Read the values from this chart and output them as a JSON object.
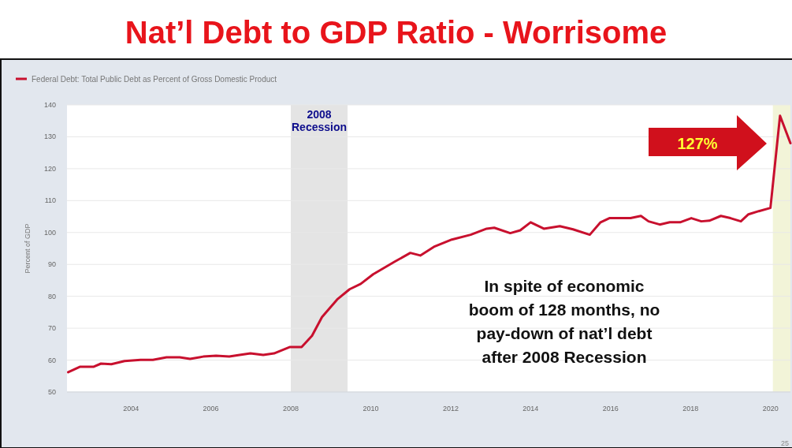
{
  "chart_data": {
    "type": "line",
    "title": "Nat’l Debt to GDP Ratio - Worrisome",
    "ylabel": "Percent of GDP",
    "x": [
      2002.43,
      2002.72,
      2003.06,
      2003.25,
      2003.51,
      2003.84,
      2004.24,
      2004.55,
      2004.89,
      2005.22,
      2005.48,
      2005.81,
      2006.13,
      2006.46,
      2006.72,
      2006.99,
      2007.31,
      2007.58,
      2007.98,
      2008.27,
      2008.53,
      2008.78,
      2009.16,
      2009.47,
      2009.75,
      2010.06,
      2010.59,
      2010.99,
      2011.24,
      2011.58,
      2012.03,
      2012.5,
      2012.9,
      2013.09,
      2013.49,
      2013.74,
      2014.0,
      2014.33,
      2014.73,
      2015.06,
      2015.48,
      2015.75,
      2015.97,
      2016.5,
      2016.76,
      2016.95,
      2017.23,
      2017.48,
      2017.74,
      2018.02,
      2018.27,
      2018.47,
      2018.76,
      2019.0,
      2019.26,
      2019.45,
      2019.71,
      2020.0,
      2020.24,
      2020.5
    ],
    "series": [
      {
        "name": "Federal Debt: Total Public Debt as Percent of Gross Domestic Product",
        "color": "#c8102e",
        "values": [
          56.2,
          57.9,
          57.9,
          58.9,
          58.7,
          59.7,
          60.1,
          60.1,
          60.9,
          60.9,
          60.4,
          61.1,
          61.4,
          61.1,
          61.6,
          62.1,
          61.6,
          62.1,
          64.1,
          64.1,
          67.6,
          73.5,
          79.0,
          82.2,
          83.9,
          86.9,
          90.8,
          93.6,
          92.8,
          95.5,
          97.8,
          99.3,
          101.2,
          101.5,
          99.8,
          100.7,
          103.2,
          101.2,
          102.0,
          101.0,
          99.3,
          103.2,
          104.5,
          104.5,
          105.2,
          103.5,
          102.5,
          103.2,
          103.2,
          104.5,
          103.5,
          103.7,
          105.2,
          104.5,
          103.5,
          105.7,
          106.7,
          107.7,
          136.6,
          128.0
        ]
      }
    ],
    "xlim": [
      2002.4,
      2020.5
    ],
    "xticks": [
      2004,
      2006,
      2008,
      2010,
      2012,
      2014,
      2016,
      2018,
      2020
    ],
    "ylim": [
      50,
      140
    ],
    "yticks": [
      50,
      60,
      70,
      80,
      90,
      100,
      110,
      120,
      130,
      140
    ],
    "grid": "y",
    "legend": "top left",
    "bands": [
      {
        "axis": "x",
        "from": 2008.0,
        "to": 2009.42,
        "label": "2008 Recession",
        "color": "#e4e4e4"
      },
      {
        "axis": "x",
        "from": 2020.06,
        "to": 2020.5,
        "color": "#f2f4d8"
      }
    ],
    "annotations": [
      "In spite of economic boom of 128 months, no pay-down of nat’l debt after 2008 Recession",
      "127%",
      "25"
    ]
  }
}
